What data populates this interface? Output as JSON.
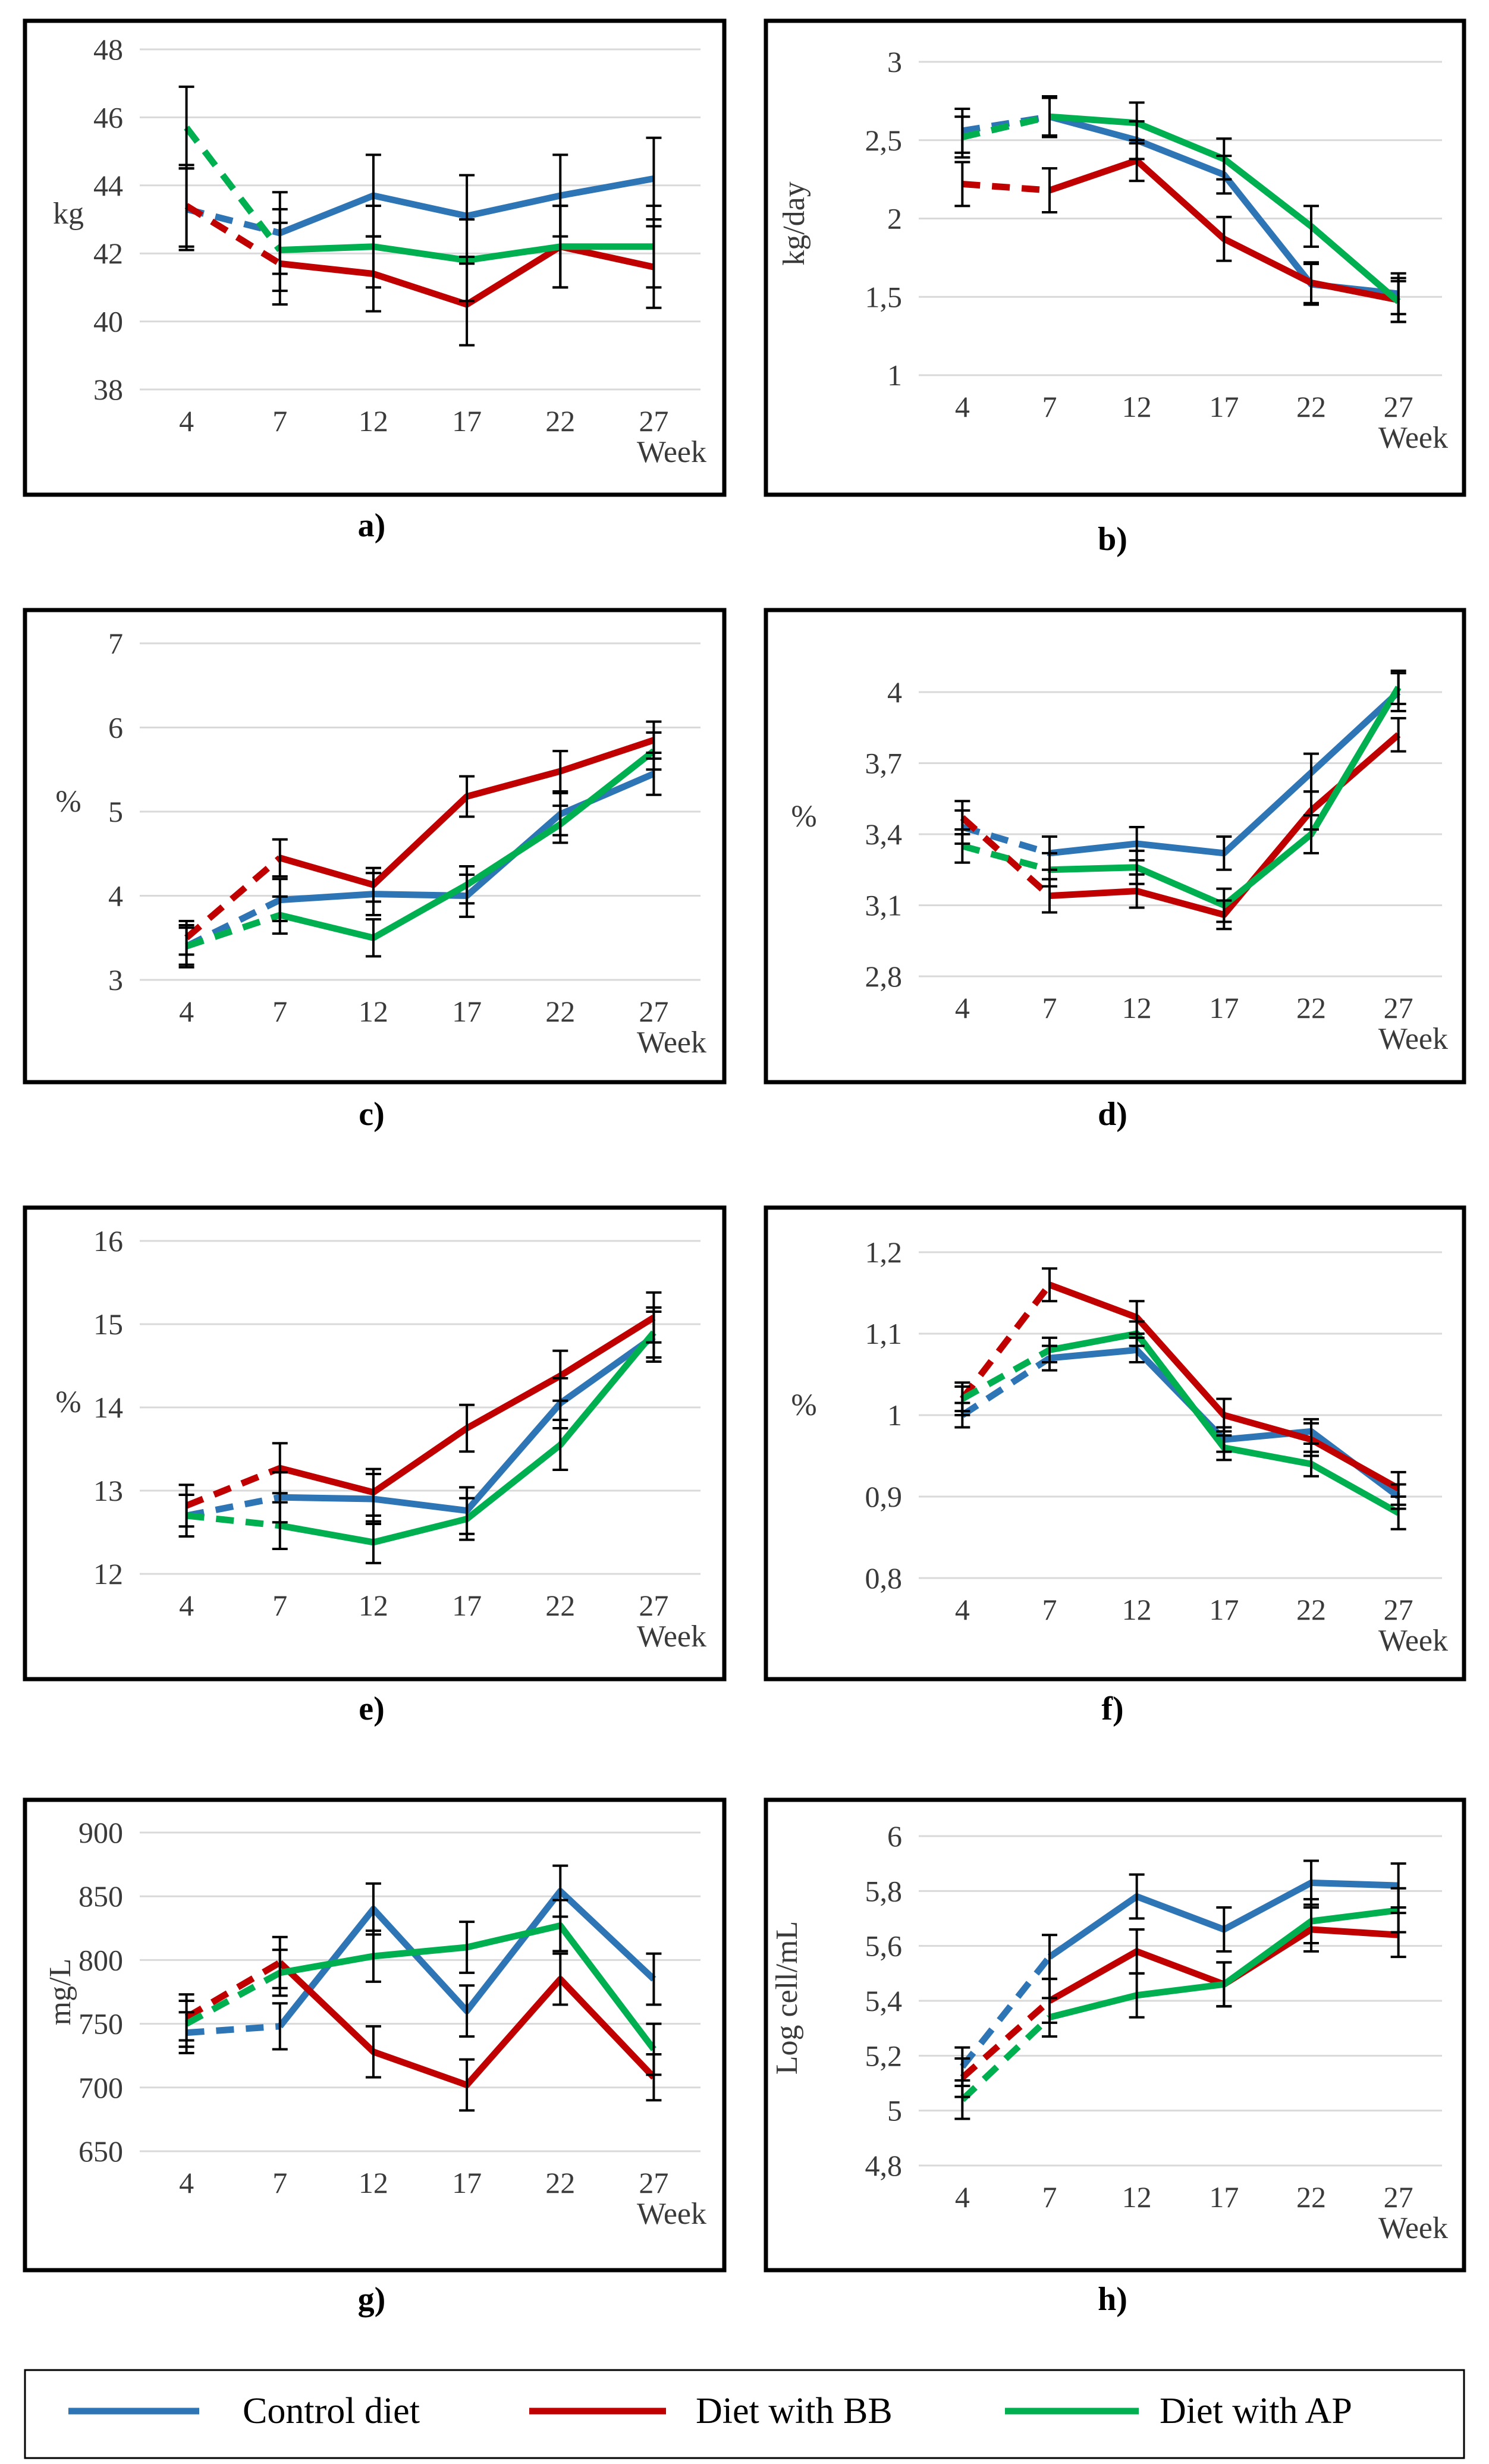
{
  "legend": [
    {
      "label": "Control diet",
      "color": "#2E75B6"
    },
    {
      "label": "Diet with BB",
      "color": "#C00000"
    },
    {
      "label": "Diet with AP",
      "color": "#00B050"
    }
  ],
  "chart_data": [
    {
      "panel": "a)",
      "type": "line",
      "ylabel": "kg",
      "xlabel": "Week",
      "categories": [
        "4",
        "7",
        "12",
        "17",
        "22",
        "27"
      ],
      "ylim": [
        38,
        48
      ],
      "yticks": [
        "38",
        "40",
        "42",
        "44",
        "46",
        "48"
      ],
      "series": [
        {
          "name": "Control diet",
          "values": [
            43.3,
            42.6,
            43.7,
            43.1,
            43.7,
            44.2
          ],
          "err": [
            1.2,
            1.2,
            1.2,
            1.2,
            1.2,
            1.2
          ]
        },
        {
          "name": "Diet with BB",
          "values": [
            43.4,
            41.7,
            41.4,
            40.5,
            42.2,
            41.6
          ],
          "err": [
            1.2,
            1.2,
            1.1,
            1.2,
            1.2,
            1.2
          ]
        },
        {
          "name": "Diet with AP",
          "values": [
            45.7,
            42.1,
            42.2,
            41.8,
            42.2,
            42.2
          ],
          "err": [
            1.2,
            1.2,
            1.2,
            1.2,
            1.2,
            1.2
          ]
        }
      ]
    },
    {
      "panel": "b)",
      "type": "line",
      "ylabel": "kg/day",
      "xlabel": "Week",
      "categories": [
        "4",
        "7",
        "12",
        "17",
        "22",
        "27"
      ],
      "ylim": [
        1,
        3
      ],
      "yticks": [
        "1",
        "1,5",
        "2",
        "2,5",
        "3"
      ],
      "series": [
        {
          "name": "Control diet",
          "values": [
            2.56,
            2.65,
            2.5,
            2.28,
            1.58,
            1.52
          ],
          "err": [
            0.14,
            0.12,
            0.12,
            0.12,
            0.13,
            0.13
          ]
        },
        {
          "name": "Diet with BB",
          "values": [
            2.22,
            2.18,
            2.37,
            1.87,
            1.59,
            1.48
          ],
          "err": [
            0.14,
            0.14,
            0.13,
            0.14,
            0.13,
            0.14
          ]
        },
        {
          "name": "Diet with AP",
          "values": [
            2.52,
            2.65,
            2.61,
            2.38,
            1.95,
            1.47
          ],
          "err": [
            0.13,
            0.13,
            0.13,
            0.13,
            0.13,
            0.13
          ]
        }
      ]
    },
    {
      "panel": "c)",
      "type": "line",
      "ylabel": "%",
      "xlabel": "Week",
      "categories": [
        "4",
        "7",
        "12",
        "17",
        "22",
        "27"
      ],
      "ylim": [
        3,
        7
      ],
      "yticks": [
        "3",
        "4",
        "5",
        "6",
        "7"
      ],
      "series": [
        {
          "name": "Control diet",
          "values": [
            3.4,
            3.95,
            4.02,
            4.0,
            4.97,
            5.45
          ],
          "err": [
            0.25,
            0.25,
            0.25,
            0.25,
            0.25,
            0.25
          ]
        },
        {
          "name": "Diet with BB",
          "values": [
            3.5,
            4.45,
            4.13,
            5.18,
            5.48,
            5.85
          ],
          "err": [
            0.2,
            0.22,
            0.2,
            0.24,
            0.24,
            0.22
          ]
        },
        {
          "name": "Diet with AP",
          "values": [
            3.4,
            3.77,
            3.5,
            4.13,
            4.85,
            5.72
          ],
          "err": [
            0.22,
            0.22,
            0.22,
            0.22,
            0.22,
            0.22
          ]
        }
      ]
    },
    {
      "panel": "d)",
      "type": "line",
      "ylabel": "%",
      "xlabel": "Week",
      "categories": [
        "4",
        "7",
        "12",
        "17",
        "22",
        "27"
      ],
      "ylim": [
        2.8,
        4.0
      ],
      "yticks": [
        "2,8",
        "3,1",
        "3,4",
        "3,7",
        "4"
      ],
      "series": [
        {
          "name": "Control diet",
          "values": [
            3.43,
            3.32,
            3.36,
            3.32,
            3.66,
            4.0
          ],
          "err": [
            0.07,
            0.07,
            0.07,
            0.07,
            0.08,
            0.08
          ]
        },
        {
          "name": "Diet with BB",
          "values": [
            3.47,
            3.14,
            3.16,
            3.06,
            3.5,
            3.82
          ],
          "err": [
            0.07,
            0.07,
            0.07,
            0.06,
            0.08,
            0.07
          ]
        },
        {
          "name": "Diet with AP",
          "values": [
            3.35,
            3.25,
            3.26,
            3.1,
            3.4,
            4.02
          ],
          "err": [
            0.07,
            0.07,
            0.07,
            0.07,
            0.08,
            0.07
          ]
        }
      ]
    },
    {
      "panel": "e)",
      "type": "line",
      "ylabel": "%",
      "xlabel": "Week",
      "categories": [
        "4",
        "7",
        "12",
        "17",
        "22",
        "27"
      ],
      "ylim": [
        12,
        16
      ],
      "yticks": [
        "12",
        "13",
        "14",
        "15",
        "16"
      ],
      "series": [
        {
          "name": "Control diet",
          "values": [
            12.7,
            12.92,
            12.9,
            12.76,
            14.05,
            14.85
          ],
          "err": [
            0.25,
            0.3,
            0.3,
            0.28,
            0.3,
            0.3
          ]
        },
        {
          "name": "Diet with BB",
          "values": [
            12.82,
            13.27,
            12.98,
            13.75,
            14.38,
            15.08
          ],
          "err": [
            0.25,
            0.3,
            0.28,
            0.28,
            0.3,
            0.3
          ]
        },
        {
          "name": "Diet with AP",
          "values": [
            12.7,
            12.58,
            12.38,
            12.66,
            13.55,
            14.9
          ],
          "err": [
            0.25,
            0.28,
            0.25,
            0.25,
            0.3,
            0.3
          ]
        }
      ]
    },
    {
      "panel": "f)",
      "type": "line",
      "ylabel": "%",
      "xlabel": "Week",
      "categories": [
        "4",
        "7",
        "12",
        "17",
        "22",
        "27"
      ],
      "ylim": [
        0.8,
        1.2
      ],
      "yticks": [
        "0,8",
        "0,9",
        "1",
        "1,1",
        "1,2"
      ],
      "series": [
        {
          "name": "Control diet",
          "values": [
            1.0,
            1.07,
            1.08,
            0.97,
            0.98,
            0.9
          ],
          "err": [
            0.015,
            0.015,
            0.015,
            0.015,
            0.015,
            0.015
          ]
        },
        {
          "name": "Diet with BB",
          "values": [
            1.02,
            1.16,
            1.12,
            1.0,
            0.97,
            0.91
          ],
          "err": [
            0.02,
            0.02,
            0.02,
            0.02,
            0.02,
            0.02
          ]
        },
        {
          "name": "Diet with AP",
          "values": [
            1.02,
            1.08,
            1.1,
            0.96,
            0.94,
            0.88
          ],
          "err": [
            0.015,
            0.015,
            0.015,
            0.015,
            0.015,
            0.02
          ]
        }
      ]
    },
    {
      "panel": "g)",
      "type": "line",
      "ylabel": "mg/L",
      "xlabel": "Week",
      "categories": [
        "4",
        "7",
        "12",
        "17",
        "22",
        "27"
      ],
      "ylim": [
        650,
        900
      ],
      "yticks": [
        "650",
        "700",
        "750",
        "800",
        "850",
        "900"
      ],
      "series": [
        {
          "name": "Control diet",
          "values": [
            743,
            748,
            840,
            760,
            854,
            785
          ],
          "err": [
            16,
            18,
            20,
            20,
            20,
            20
          ]
        },
        {
          "name": "Diet with BB",
          "values": [
            755,
            798,
            728,
            702,
            785,
            708
          ],
          "err": [
            18,
            20,
            20,
            20,
            20,
            18
          ]
        },
        {
          "name": "Diet with AP",
          "values": [
            750,
            790,
            803,
            810,
            827,
            730
          ],
          "err": [
            18,
            18,
            20,
            20,
            20,
            20
          ]
        }
      ]
    },
    {
      "panel": "h)",
      "type": "line",
      "ylabel": "Log cell/mL",
      "xlabel": "Week",
      "categories": [
        "4",
        "7",
        "12",
        "17",
        "22",
        "27"
      ],
      "ylim": [
        4.8,
        6.0
      ],
      "yticks": [
        "4,8",
        "5",
        "5,2",
        "5,4",
        "5,6",
        "5,8",
        "6"
      ],
      "series": [
        {
          "name": "Control diet",
          "values": [
            5.16,
            5.56,
            5.78,
            5.66,
            5.83,
            5.82
          ],
          "err": [
            0.07,
            0.08,
            0.08,
            0.08,
            0.08,
            0.08
          ]
        },
        {
          "name": "Diet with BB",
          "values": [
            5.12,
            5.4,
            5.58,
            5.46,
            5.66,
            5.64
          ],
          "err": [
            0.07,
            0.08,
            0.08,
            0.08,
            0.08,
            0.08
          ]
        },
        {
          "name": "Diet with AP",
          "values": [
            5.04,
            5.34,
            5.42,
            5.46,
            5.69,
            5.73
          ],
          "err": [
            0.07,
            0.07,
            0.08,
            0.08,
            0.08,
            0.08
          ]
        }
      ]
    }
  ]
}
